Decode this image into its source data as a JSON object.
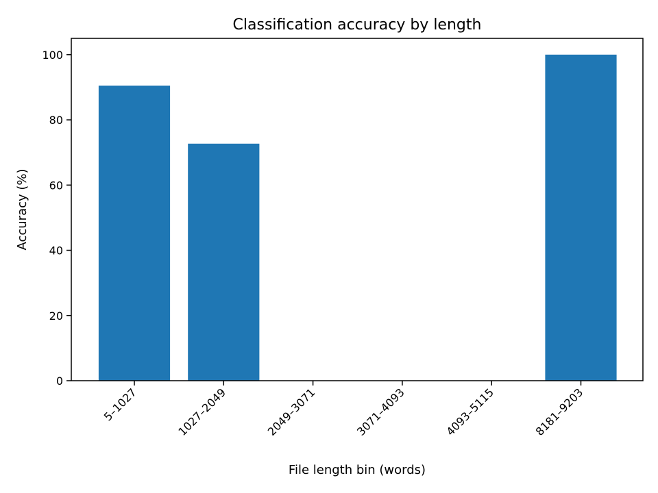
{
  "chart_data": {
    "type": "bar",
    "title": "Classification accuracy by length",
    "xlabel": "File length bin (words)",
    "ylabel": "Accuracy (%)",
    "categories": [
      "5–1027",
      "1027–2049",
      "2049–3071",
      "3071–4093",
      "4093–5115",
      "8181–9203"
    ],
    "values": [
      90.5,
      72.7,
      0,
      0,
      0,
      100
    ],
    "ylim": [
      0,
      105
    ],
    "yticks": [
      0,
      20,
      40,
      60,
      80,
      100
    ],
    "grid": false,
    "bar_color": "#1f77b4"
  }
}
